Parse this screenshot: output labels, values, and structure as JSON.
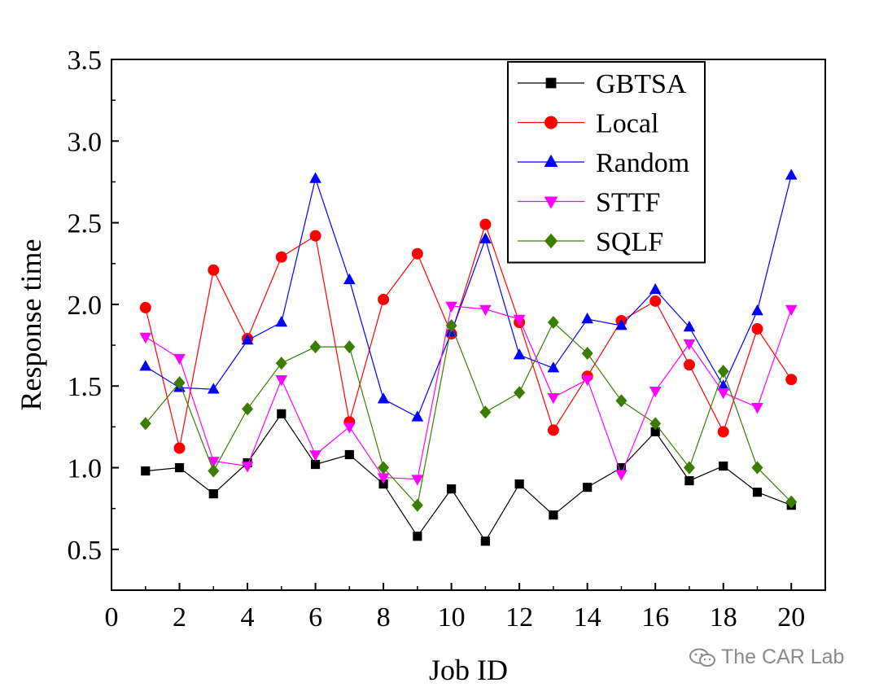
{
  "chart_data": {
    "type": "line",
    "title": "",
    "xlabel": "Job ID",
    "ylabel": "Response time",
    "xlim": [
      0,
      21
    ],
    "ylim": [
      0.25,
      3.5
    ],
    "xticks": [
      0,
      2,
      4,
      6,
      8,
      10,
      12,
      14,
      16,
      18,
      20
    ],
    "xtick_labels": [
      "0",
      "2",
      "4",
      "6",
      "8",
      "10",
      "12",
      "14",
      "16",
      "18",
      "20"
    ],
    "yticks": [
      0.5,
      1.0,
      1.5,
      2.0,
      2.5,
      3.0,
      3.5
    ],
    "ytick_labels": [
      "0.5",
      "1.0",
      "1.5",
      "2.0",
      "2.5",
      "3.0",
      "3.5"
    ],
    "grid": false,
    "legend_position": "top-right",
    "x": [
      1,
      2,
      3,
      4,
      5,
      6,
      7,
      8,
      9,
      10,
      11,
      12,
      13,
      14,
      15,
      16,
      17,
      18,
      19,
      20
    ],
    "series": [
      {
        "name": "GBTSA",
        "color": "#000000",
        "marker": "square",
        "values": [
          0.98,
          1.0,
          0.84,
          1.03,
          1.33,
          1.02,
          1.08,
          0.9,
          0.58,
          0.87,
          0.55,
          0.9,
          0.71,
          0.88,
          1.0,
          1.22,
          0.92,
          1.01,
          0.85,
          0.77
        ]
      },
      {
        "name": "Local",
        "color": "#ff0000",
        "marker": "circle",
        "values": [
          1.98,
          1.12,
          2.21,
          1.79,
          2.29,
          2.42,
          1.28,
          2.03,
          2.31,
          1.82,
          2.49,
          1.89,
          1.23,
          1.56,
          1.9,
          2.02,
          1.63,
          1.22,
          1.85,
          1.54
        ]
      },
      {
        "name": "Random",
        "color": "#0000ff",
        "marker": "triangle-up",
        "values": [
          1.62,
          1.49,
          1.48,
          1.78,
          1.89,
          2.77,
          2.15,
          1.42,
          1.31,
          1.83,
          2.4,
          1.69,
          1.61,
          1.91,
          1.87,
          2.09,
          1.86,
          1.5,
          1.96,
          2.79
        ]
      },
      {
        "name": "STTF",
        "color": "#ff00ff",
        "marker": "triangle-down",
        "values": [
          1.8,
          1.67,
          1.04,
          1.01,
          1.54,
          1.08,
          1.25,
          0.94,
          0.93,
          1.99,
          1.97,
          1.91,
          1.43,
          1.54,
          0.96,
          1.47,
          1.76,
          1.46,
          1.37,
          1.97
        ]
      },
      {
        "name": "SQLF",
        "color": "#3a7d00",
        "marker": "diamond",
        "values": [
          1.27,
          1.52,
          0.98,
          1.36,
          1.64,
          1.74,
          1.74,
          1.0,
          0.77,
          1.87,
          1.34,
          1.46,
          1.89,
          1.7,
          1.41,
          1.27,
          1.0,
          1.59,
          1.0,
          0.79
        ]
      }
    ]
  },
  "watermark": {
    "text": "The CAR Lab",
    "icon": "wechat-icon"
  }
}
